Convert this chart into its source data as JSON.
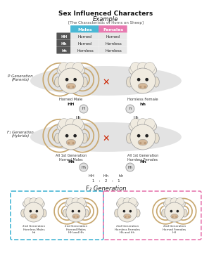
{
  "title": "Sex Influenced Characters",
  "subtitle": "Example",
  "subtitle2": "[The Characteristic of Horns on Sheep]",
  "table": {
    "genotypes": [
      "HH",
      "Hh",
      "hh"
    ],
    "males": [
      "Horned",
      "Horned",
      "Hornless"
    ],
    "females": [
      "Horned",
      "Hornless",
      "Hornless"
    ],
    "male_header_color": "#4ab8d5",
    "female_header_color": "#e87ab0",
    "row_color": "#555555",
    "header_text_color": "#ffffff",
    "genotype_text_color": "#ffffff",
    "cell_bg": "#e8e8e8"
  },
  "p_gen_label": "P Generation\n(Parents)",
  "f1_gen_label": "F₁ Generation\n(Hybrids)",
  "f2_gen_label": "F₂ Generation",
  "p_male_label": "Horned Male",
  "p_male_genotype": "HH",
  "p_female_label": "Hornless Female",
  "p_female_genotype": "hh",
  "gamete_p_left": "H",
  "gamete_p_right": "h",
  "offspring_p_left": "Hh",
  "offspring_p_right": "Hh",
  "f1_male_label": "All 1st Generation\nHorned Males",
  "f1_male_genotype": "Hh",
  "f1_female_label": "All 1st Generation\nHornless Females",
  "f1_female_genotype": "Hh",
  "gamete_f1_left": "Hh",
  "gamete_f1_right": "Hh",
  "ratio_genos": "HH        Hh         hh",
  "ratio_vals": "1    :    2    :    1",
  "f2_gen_label_display": "F₂ Generation",
  "f2_boxes": [
    {
      "label": "2nd Generation\nHornless Males\nhh",
      "border_color": "#4ab8d5",
      "horned": false,
      "male": true
    },
    {
      "label": "2nd Generation\nHorned Males\nHH and Hh",
      "border_color": "#4ab8d5",
      "horned": true,
      "male": true
    },
    {
      "label": "2nd Generation\nHornless Females\nHh and hh",
      "border_color": "#e87ab0",
      "horned": false,
      "male": false
    },
    {
      "label": "2nd Generation\nHorned Females\nHH",
      "border_color": "#e87ab0",
      "horned": true,
      "male": false
    }
  ],
  "bg_color": "#ffffff",
  "ellipse_fill": "#dcdcdc",
  "cross_color": "#cc2200",
  "gamete_fill": "#e0e0e0",
  "gamete_edge": "#999999",
  "sheep_face_color": "#f0ebe0",
  "sheep_ear_color": "#e8e0d0",
  "sheep_wool_color": "#f0ebe0",
  "sheep_horn_color": "#c8a870",
  "sheep_nose_color": "#d4b898",
  "sheep_eye_color": "#222222"
}
